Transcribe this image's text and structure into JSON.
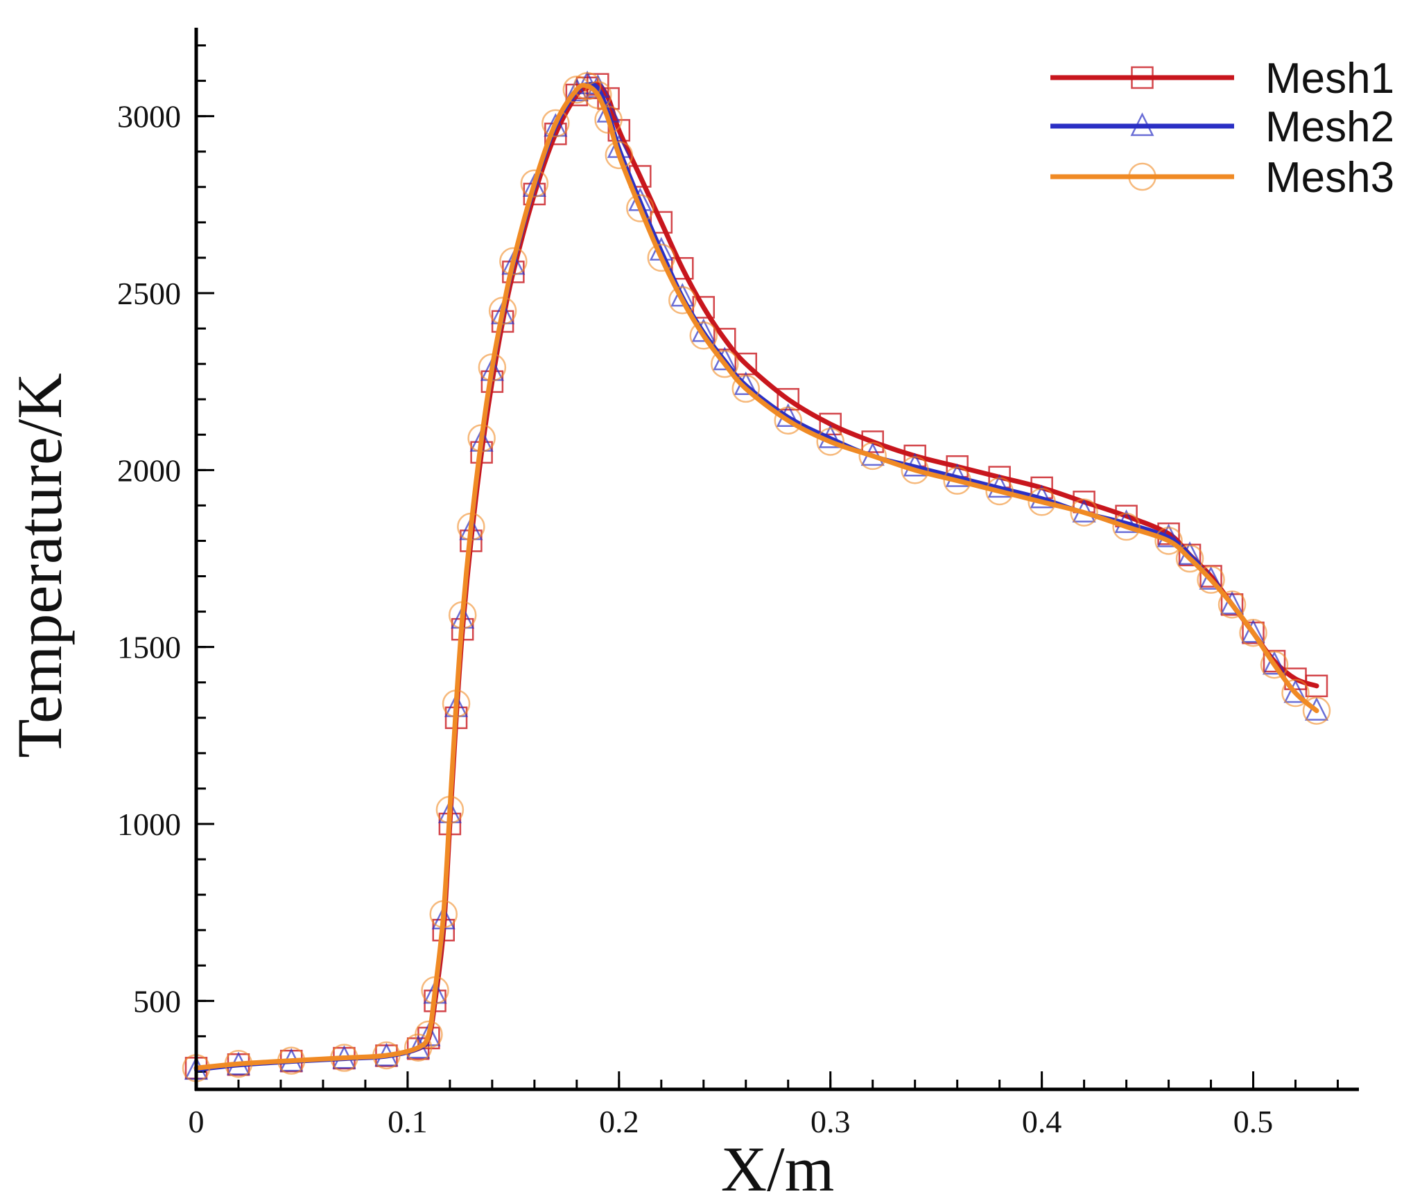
{
  "chart_data": {
    "type": "line",
    "xlabel": "X/m",
    "ylabel": "Temperature/K",
    "xlim": [
      0,
      0.55
    ],
    "ylim": [
      250,
      3250
    ],
    "x_ticks": [
      0,
      0.1,
      0.2,
      0.3,
      0.4,
      0.5
    ],
    "x_tick_labels": [
      "0",
      "0.1",
      "0.2",
      "0.3",
      "0.4",
      "0.5"
    ],
    "y_ticks": [
      500,
      1000,
      1500,
      2000,
      2500,
      3000
    ],
    "y_tick_labels": [
      "500",
      "1000",
      "1500",
      "2000",
      "2500",
      "3000"
    ],
    "x_minor_step": 0.02,
    "y_minor_step": 100,
    "legend_position": "top-right",
    "series": [
      {
        "name": "Mesh1",
        "color": "#c8161d",
        "marker": "square",
        "x": [
          0,
          0.02,
          0.045,
          0.07,
          0.09,
          0.105,
          0.11,
          0.113,
          0.117,
          0.12,
          0.123,
          0.126,
          0.13,
          0.135,
          0.14,
          0.145,
          0.15,
          0.16,
          0.17,
          0.18,
          0.185,
          0.19,
          0.195,
          0.2,
          0.21,
          0.22,
          0.23,
          0.24,
          0.25,
          0.26,
          0.28,
          0.3,
          0.32,
          0.34,
          0.36,
          0.38,
          0.4,
          0.42,
          0.44,
          0.46,
          0.47,
          0.48,
          0.49,
          0.5,
          0.51,
          0.52,
          0.53
        ],
        "values": [
          310,
          320,
          330,
          338,
          345,
          365,
          395,
          500,
          700,
          1000,
          1300,
          1550,
          1800,
          2050,
          2250,
          2420,
          2560,
          2780,
          2950,
          3060,
          3080,
          3090,
          3050,
          2960,
          2830,
          2700,
          2570,
          2460,
          2370,
          2300,
          2200,
          2130,
          2080,
          2040,
          2010,
          1980,
          1950,
          1910,
          1870,
          1820,
          1760,
          1700,
          1620,
          1540,
          1460,
          1410,
          1390
        ]
      },
      {
        "name": "Mesh2",
        "color": "#2a2fc4",
        "marker": "triangle",
        "x": [
          0,
          0.02,
          0.045,
          0.07,
          0.09,
          0.105,
          0.11,
          0.113,
          0.117,
          0.12,
          0.123,
          0.126,
          0.13,
          0.135,
          0.14,
          0.145,
          0.15,
          0.16,
          0.17,
          0.18,
          0.185,
          0.19,
          0.195,
          0.2,
          0.21,
          0.22,
          0.23,
          0.24,
          0.25,
          0.26,
          0.28,
          0.3,
          0.32,
          0.34,
          0.36,
          0.38,
          0.4,
          0.42,
          0.44,
          0.46,
          0.47,
          0.48,
          0.49,
          0.5,
          0.51,
          0.52,
          0.53
        ],
        "values": [
          305,
          318,
          328,
          336,
          343,
          365,
          400,
          520,
          730,
          1030,
          1330,
          1580,
          1830,
          2080,
          2280,
          2440,
          2580,
          2800,
          2970,
          3070,
          3090,
          3080,
          3010,
          2910,
          2760,
          2620,
          2490,
          2390,
          2310,
          2240,
          2150,
          2090,
          2040,
          2010,
          1980,
          1950,
          1920,
          1880,
          1850,
          1810,
          1760,
          1690,
          1620,
          1540,
          1450,
          1370,
          1320
        ]
      },
      {
        "name": "Mesh3",
        "color": "#f08a24",
        "marker": "circle",
        "x": [
          0,
          0.02,
          0.045,
          0.07,
          0.09,
          0.105,
          0.11,
          0.113,
          0.117,
          0.12,
          0.123,
          0.126,
          0.13,
          0.135,
          0.14,
          0.145,
          0.15,
          0.16,
          0.17,
          0.18,
          0.185,
          0.19,
          0.195,
          0.2,
          0.21,
          0.22,
          0.23,
          0.24,
          0.25,
          0.26,
          0.28,
          0.3,
          0.32,
          0.34,
          0.36,
          0.38,
          0.4,
          0.42,
          0.44,
          0.46,
          0.47,
          0.48,
          0.49,
          0.5,
          0.51,
          0.52,
          0.53
        ],
        "values": [
          310,
          322,
          331,
          339,
          346,
          368,
          405,
          530,
          745,
          1040,
          1340,
          1590,
          1840,
          2090,
          2290,
          2450,
          2590,
          2810,
          2980,
          3075,
          3085,
          3060,
          2990,
          2890,
          2740,
          2600,
          2480,
          2380,
          2300,
          2230,
          2140,
          2080,
          2040,
          2000,
          1970,
          1940,
          1910,
          1880,
          1840,
          1800,
          1750,
          1690,
          1620,
          1540,
          1450,
          1370,
          1320
        ]
      }
    ]
  }
}
